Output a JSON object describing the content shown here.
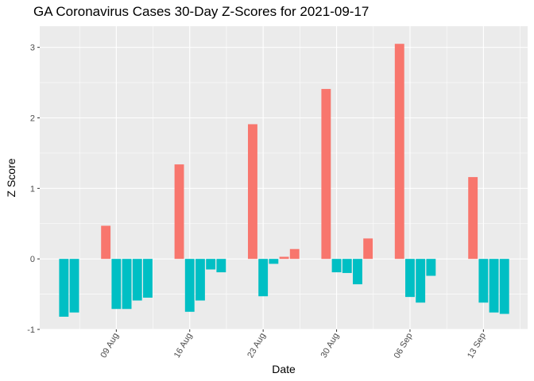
{
  "chart_data": {
    "type": "bar",
    "title": "GA Coronavirus Cases 30-Day Z-Scores for 2021-09-17",
    "xlabel": "Date",
    "ylabel": "Z Score",
    "ylim": [
      -1.0,
      3.3
    ],
    "y_ticks": [
      -1,
      0,
      1,
      2,
      3
    ],
    "x_ticks": [
      {
        "label": "09 Aug",
        "date": "2021-08-09"
      },
      {
        "label": "16 Aug",
        "date": "2021-08-16"
      },
      {
        "label": "23 Aug",
        "date": "2021-08-23"
      },
      {
        "label": "30 Aug",
        "date": "2021-08-30"
      },
      {
        "label": "06 Sep",
        "date": "2021-09-06"
      },
      {
        "label": "13 Sep",
        "date": "2021-09-13"
      }
    ],
    "grid": true,
    "legend": "none",
    "colors": {
      "positive": "#F8766D",
      "negative": "#00BFC4",
      "panel": "#EBEBEB",
      "grid": "#FFFFFF"
    },
    "bars": [
      {
        "date": "2021-08-04",
        "value": -0.82
      },
      {
        "date": "2021-08-05",
        "value": -0.76
      },
      {
        "date": "2021-08-08",
        "value": 0.47
      },
      {
        "date": "2021-08-09",
        "value": -0.71
      },
      {
        "date": "2021-08-10",
        "value": -0.71
      },
      {
        "date": "2021-08-11",
        "value": -0.59
      },
      {
        "date": "2021-08-12",
        "value": -0.55
      },
      {
        "date": "2021-08-15",
        "value": 1.34
      },
      {
        "date": "2021-08-16",
        "value": -0.75
      },
      {
        "date": "2021-08-17",
        "value": -0.59
      },
      {
        "date": "2021-08-18",
        "value": -0.15
      },
      {
        "date": "2021-08-19",
        "value": -0.19
      },
      {
        "date": "2021-08-22",
        "value": 1.91
      },
      {
        "date": "2021-08-23",
        "value": -0.53
      },
      {
        "date": "2021-08-24",
        "value": -0.07
      },
      {
        "date": "2021-08-25",
        "value": 0.03
      },
      {
        "date": "2021-08-26",
        "value": 0.14
      },
      {
        "date": "2021-08-29",
        "value": 2.41
      },
      {
        "date": "2021-08-30",
        "value": -0.19
      },
      {
        "date": "2021-08-31",
        "value": -0.2
      },
      {
        "date": "2021-09-01",
        "value": -0.36
      },
      {
        "date": "2021-09-02",
        "value": 0.29
      },
      {
        "date": "2021-09-05",
        "value": 3.05
      },
      {
        "date": "2021-09-06",
        "value": -0.54
      },
      {
        "date": "2021-09-07",
        "value": -0.62
      },
      {
        "date": "2021-09-08",
        "value": -0.24
      },
      {
        "date": "2021-09-12",
        "value": 1.16
      },
      {
        "date": "2021-09-13",
        "value": -0.62
      },
      {
        "date": "2021-09-14",
        "value": -0.76
      },
      {
        "date": "2021-09-15",
        "value": -0.78
      }
    ]
  }
}
